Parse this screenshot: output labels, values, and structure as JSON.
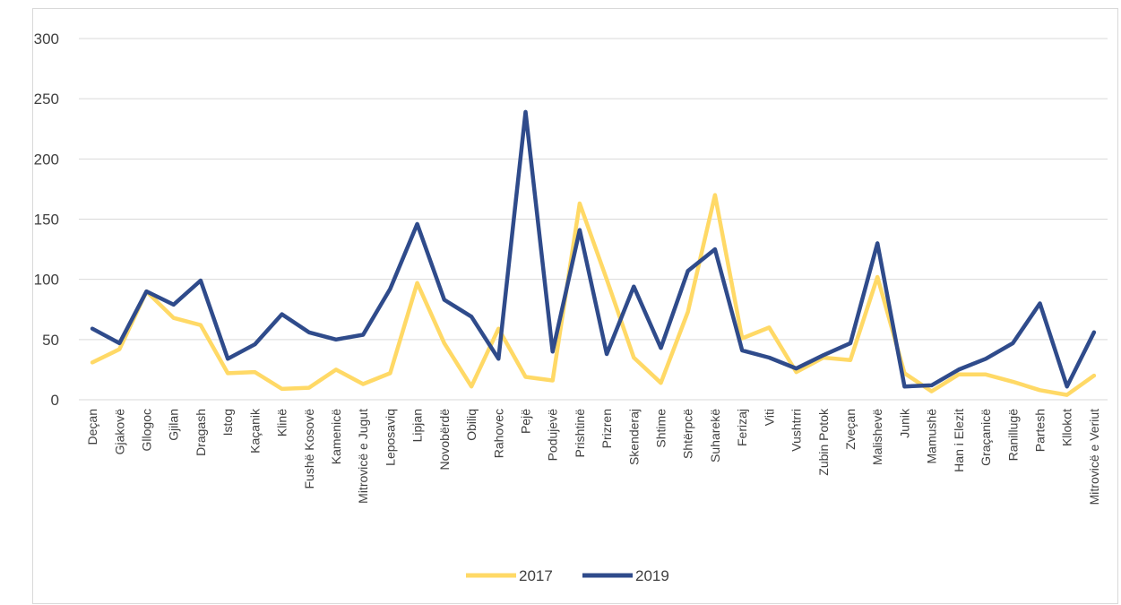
{
  "chart_data": {
    "type": "line",
    "title": "",
    "xlabel": "",
    "ylabel": "",
    "ylim": [
      0,
      300
    ],
    "yticks": [
      0,
      50,
      100,
      150,
      200,
      250,
      300
    ],
    "grid": true,
    "legend_position": "bottom",
    "categories": [
      "Deçan",
      "Gjakovë",
      "Gllogoc",
      "Gjilan",
      "Dragash",
      "Istog",
      "Kaçanik",
      "Klinë",
      "Fushë Kosovë",
      "Kamenicë",
      "Mitrovicë e Jugut",
      "Leposaviq",
      "Lipjan",
      "Novobërdë",
      "Obiliq",
      "Rahovec",
      "Pejë",
      "Podujevë",
      "Prishtinë",
      "Prizren",
      "Skenderaj",
      "Shtime",
      "Shtërpcë",
      "Suharekë",
      "Ferizaj",
      "Viti",
      "Vushtrri",
      "Zubin Potok",
      "Zveçan",
      "Malishevë",
      "Junik",
      "Mamushë",
      "Han i Elezit",
      "Graçanicë",
      "Ranillugë",
      "Partesh",
      "Kllokot",
      "Mitrovicë e Veriut"
    ],
    "series": [
      {
        "name": "2017",
        "color": "#FFD966",
        "values": [
          31,
          42,
          90,
          68,
          62,
          22,
          23,
          9,
          10,
          25,
          13,
          22,
          97,
          47,
          11,
          59,
          19,
          16,
          163,
          100,
          35,
          14,
          73,
          170,
          51,
          60,
          23,
          35,
          33,
          102,
          22,
          7,
          21,
          21,
          15,
          8,
          4,
          20
        ]
      },
      {
        "name": "2019",
        "color": "#2F4B8B",
        "values": [
          59,
          47,
          90,
          79,
          99,
          34,
          46,
          71,
          56,
          50,
          54,
          92,
          146,
          83,
          69,
          34,
          239,
          40,
          141,
          38,
          94,
          43,
          107,
          125,
          41,
          35,
          26,
          37,
          47,
          130,
          11,
          12,
          25,
          34,
          47,
          80,
          11,
          56
        ]
      }
    ]
  }
}
